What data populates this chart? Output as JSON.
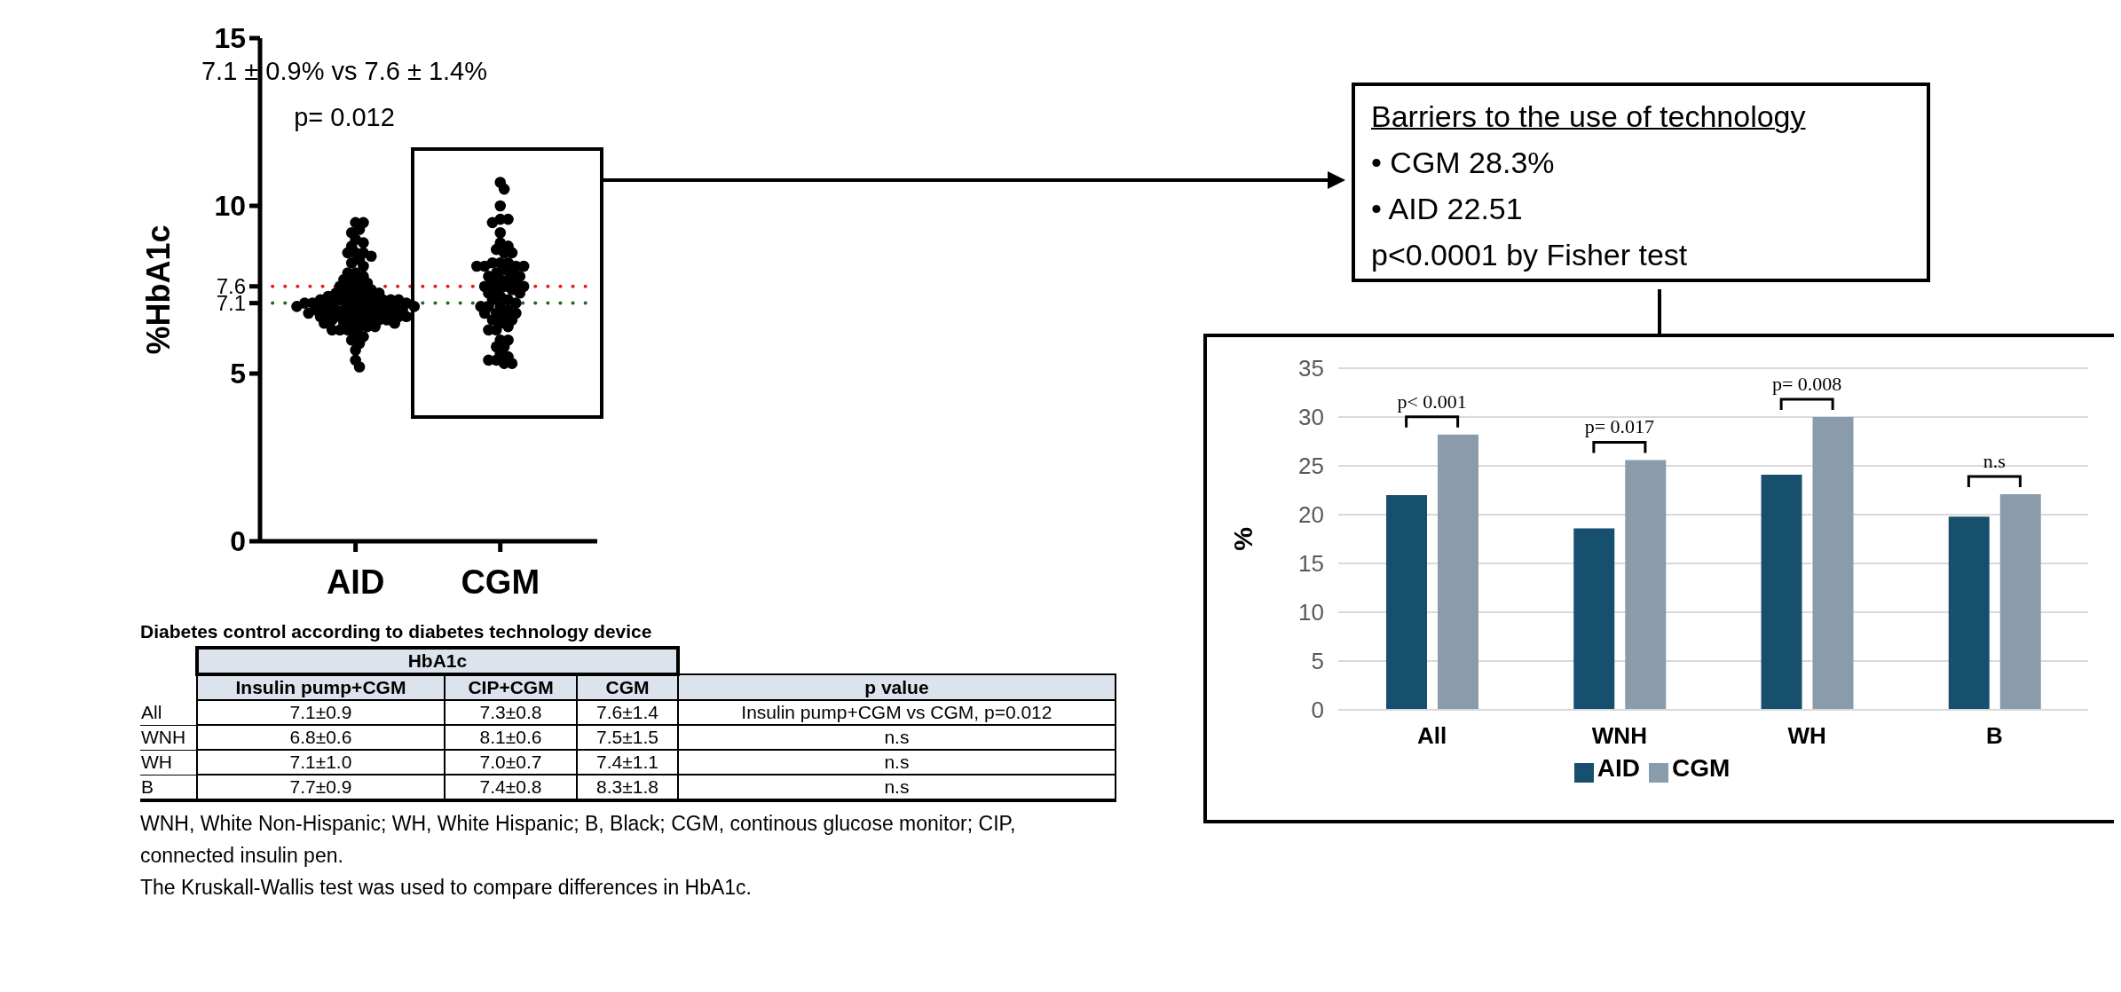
{
  "chart_data": [
    {
      "type": "scatter",
      "categories": [
        "AID",
        "CGM"
      ],
      "ylabel": "%HbA1c",
      "ylim": [
        0,
        15
      ],
      "yticks": [
        0,
        5,
        7.1,
        7.6,
        10,
        15
      ],
      "marker": "circle",
      "annotations": [
        "7.1 ± 0.9% vs 7.6 ± 1.4%",
        "p= 0.012"
      ],
      "ref_lines": [
        {
          "axis": "y",
          "value": 7.6,
          "color": "#e02020",
          "line_style": "dotted"
        },
        {
          "axis": "y",
          "value": 7.1,
          "color": "#1e6a1e",
          "line_style": "dotted"
        }
      ],
      "series": [
        {
          "color": "#000000",
          "x": [
            "AID",
            "AID",
            "AID",
            "AID",
            "AID",
            "AID",
            "AID",
            "AID",
            "AID",
            "AID",
            "AID",
            "AID",
            "AID",
            "AID",
            "AID",
            "AID",
            "AID",
            "AID",
            "AID",
            "AID",
            "AID",
            "AID",
            "AID",
            "AID",
            "AID",
            "AID",
            "AID",
            "AID",
            "AID",
            "AID",
            "AID",
            "AID",
            "AID",
            "AID",
            "AID",
            "AID",
            "AID",
            "AID",
            "AID",
            "AID",
            "AID",
            "AID",
            "AID",
            "AID",
            "AID",
            "AID",
            "AID",
            "AID",
            "AID",
            "AID",
            "AID",
            "AID",
            "AID",
            "AID",
            "AID",
            "AID",
            "AID",
            "AID",
            "AID",
            "AID",
            "AID",
            "AID",
            "AID",
            "AID",
            "AID",
            "AID",
            "AID",
            "AID",
            "AID",
            "AID",
            "AID",
            "AID",
            "AID",
            "AID",
            "AID",
            "AID",
            "AID",
            "AID",
            "AID",
            "AID",
            "AID",
            "AID",
            "AID",
            "AID",
            "AID",
            "AID",
            "AID",
            "AID",
            "AID",
            "AID",
            "AID",
            "AID",
            "AID"
          ],
          "values": [
            9.5,
            9.5,
            9.3,
            9.2,
            9.0,
            8.9,
            8.8,
            8.6,
            8.6,
            8.6,
            8.5,
            8.4,
            8.3,
            8.2,
            8.0,
            8.0,
            7.9,
            7.8,
            7.8,
            7.7,
            7.7,
            7.6,
            7.6,
            7.5,
            7.5,
            7.5,
            7.4,
            7.4,
            7.4,
            7.3,
            7.3,
            7.3,
            7.3,
            7.2,
            7.2,
            7.2,
            7.2,
            7.2,
            7.2,
            7.1,
            7.1,
            7.1,
            7.1,
            7.1,
            7.1,
            7.1,
            7.0,
            7.0,
            7.0,
            7.0,
            7.0,
            7.0,
            7.0,
            6.9,
            6.9,
            6.9,
            6.9,
            6.9,
            6.9,
            6.8,
            6.8,
            6.8,
            6.8,
            6.8,
            6.8,
            6.7,
            6.7,
            6.7,
            6.7,
            6.7,
            6.7,
            6.6,
            6.6,
            6.6,
            6.6,
            6.6,
            6.5,
            6.5,
            6.5,
            6.5,
            6.4,
            6.4,
            6.4,
            6.3,
            6.3,
            6.3,
            6.2,
            6.1,
            6.0,
            5.9,
            5.7,
            5.4,
            5.2
          ]
        },
        {
          "color": "#000000",
          "x": [
            "CGM",
            "CGM",
            "CGM",
            "CGM",
            "CGM",
            "CGM",
            "CGM",
            "CGM",
            "CGM",
            "CGM",
            "CGM",
            "CGM",
            "CGM",
            "CGM",
            "CGM",
            "CGM",
            "CGM",
            "CGM",
            "CGM",
            "CGM",
            "CGM",
            "CGM",
            "CGM",
            "CGM",
            "CGM",
            "CGM",
            "CGM",
            "CGM",
            "CGM",
            "CGM",
            "CGM",
            "CGM",
            "CGM",
            "CGM",
            "CGM",
            "CGM",
            "CGM",
            "CGM",
            "CGM",
            "CGM",
            "CGM",
            "CGM",
            "CGM",
            "CGM",
            "CGM",
            "CGM",
            "CGM",
            "CGM",
            "CGM",
            "CGM",
            "CGM",
            "CGM",
            "CGM",
            "CGM",
            "CGM",
            "CGM",
            "CGM",
            "CGM",
            "CGM",
            "CGM",
            "CGM",
            "CGM",
            "CGM"
          ],
          "values": [
            10.7,
            10.5,
            10.0,
            9.6,
            9.6,
            9.5,
            9.2,
            8.9,
            8.8,
            8.7,
            8.6,
            8.6,
            8.3,
            8.3,
            8.3,
            8.2,
            8.2,
            8.2,
            8.2,
            8.1,
            8.0,
            8.0,
            7.9,
            7.9,
            7.8,
            7.8,
            7.7,
            7.7,
            7.6,
            7.6,
            7.6,
            7.5,
            7.5,
            7.4,
            7.4,
            7.3,
            7.2,
            7.2,
            7.1,
            7.0,
            7.0,
            7.0,
            6.9,
            6.8,
            6.8,
            6.8,
            6.7,
            6.6,
            6.6,
            6.5,
            6.4,
            6.3,
            6.3,
            6.0,
            6.0,
            5.8,
            5.8,
            5.6,
            5.5,
            5.4,
            5.4,
            5.3,
            5.3
          ]
        }
      ]
    },
    {
      "type": "bar",
      "title": "Barriers to the use of technology",
      "categories": [
        "All",
        "WNH",
        "WH",
        "B"
      ],
      "ylabel": "%",
      "ylim": [
        0,
        35
      ],
      "yticks": [
        0,
        5,
        10,
        15,
        20,
        25,
        30,
        35
      ],
      "grid": "y",
      "legend": "bottom",
      "annotations": [
        "• CGM 28.3%",
        "• AID 22.51",
        "p<0.0001 by Fisher test",
        "p< 0.001",
        "p= 0.017",
        "p= 0.008",
        "n.s"
      ],
      "series": [
        {
          "name": "AID",
          "color": "#17506e",
          "values": [
            22,
            18.6,
            24.1,
            19.8
          ]
        },
        {
          "name": "CGM",
          "color": "#8a9bac",
          "values": [
            28.2,
            25.6,
            30,
            22.1
          ]
        }
      ]
    },
    {
      "type": "other",
      "title": "Diabetes control according to diabetes technology device",
      "subtitle": "HbA1c",
      "categories": [
        "Insulin pump+CGM",
        "CIP+CGM",
        "CGM",
        "p value"
      ],
      "y_categories": [
        "All",
        "WNH",
        "WH",
        "B"
      ],
      "cell_labels": [
        [
          "7.1±0.9",
          "7.3±0.8",
          "7.6±1.4",
          "Insulin pump+CGM vs CGM, p=0.012"
        ],
        [
          "6.8±0.6",
          "8.1±0.6",
          "7.5±1.5",
          "n.s"
        ],
        [
          "7.1±1.0",
          "7.0±0.7",
          "7.4±1.1",
          "n.s"
        ],
        [
          "7.7±0.9",
          "7.4±0.8",
          "8.3±1.8",
          "n.s"
        ]
      ],
      "annotations": [
        "WNH, White Non-Hispanic; WH, White Hispanic; B, Black; CGM, continous glucose monitor; CIP, connected insulin pen.",
        "The Kruskall-Wallis test was used to compare differences in HbA1c."
      ]
    }
  ]
}
